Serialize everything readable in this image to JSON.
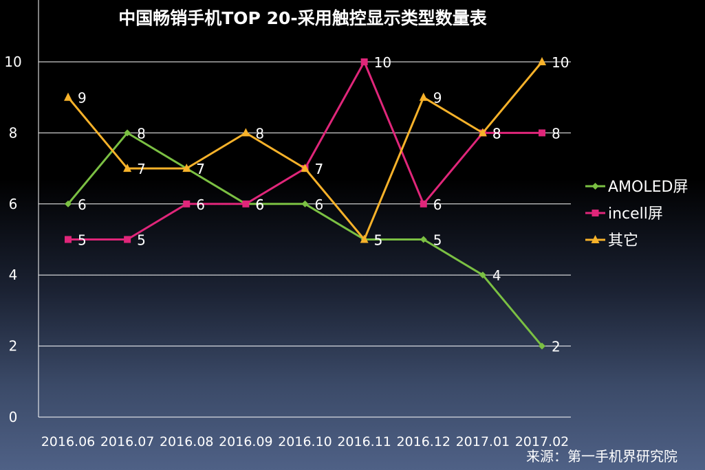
{
  "chart_data": {
    "type": "line",
    "title": "中国畅销手机TOP 20-采用触控显示类型数量表",
    "xlabel": "",
    "ylabel": "",
    "categories": [
      "2016.06",
      "2016.07",
      "2016.08",
      "2016.09",
      "2016.10",
      "2016.11",
      "2016.12",
      "2017.01",
      "2017.02"
    ],
    "ylim": [
      0,
      10
    ],
    "yticks": [
      0,
      2,
      4,
      6,
      8,
      10
    ],
    "grid": true,
    "legend_position": "right",
    "series": [
      {
        "name": "AMOLED屏",
        "color": "#7bc043",
        "marker": "diamond",
        "values": [
          6,
          8,
          7,
          6,
          6,
          5,
          5,
          4,
          2
        ]
      },
      {
        "name": "incell屏",
        "color": "#e0267a",
        "marker": "square",
        "values": [
          5,
          5,
          6,
          6,
          7,
          10,
          6,
          8,
          8
        ]
      },
      {
        "name": "其它",
        "color": "#f7b22a",
        "marker": "triangle",
        "values": [
          9,
          7,
          7,
          8,
          7,
          5,
          9,
          8,
          10
        ]
      }
    ]
  },
  "source_note": "来源：第一手机界研究院"
}
